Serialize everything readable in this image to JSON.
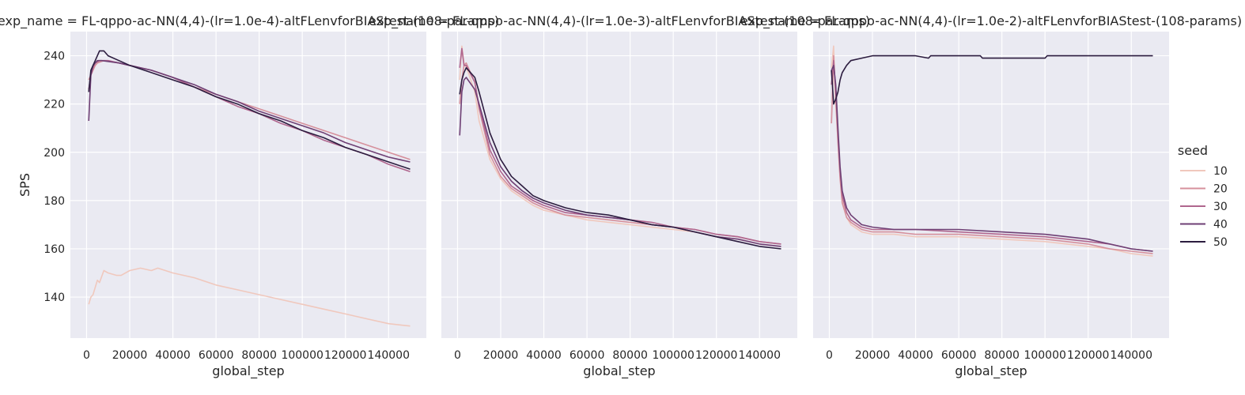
{
  "chart_data": {
    "type": "line",
    "shared": {
      "xlabel": "global_step",
      "ylabel": "SPS",
      "xlim": [
        -7500,
        157500
      ],
      "ylim": [
        123,
        250
      ],
      "x_ticks": [
        0,
        20000,
        40000,
        60000,
        80000,
        100000,
        120000,
        140000
      ],
      "y_ticks": [
        140,
        160,
        180,
        200,
        220,
        240
      ],
      "background": "#eaeaf2",
      "grid": true
    },
    "legend": {
      "title": "seed",
      "placement": "right",
      "entries": [
        {
          "label": "10",
          "color": "#f0c8bd"
        },
        {
          "label": "20",
          "color": "#d6909c"
        },
        {
          "label": "30",
          "color": "#b0668e"
        },
        {
          "label": "40",
          "color": "#6e3f74"
        },
        {
          "label": "50",
          "color": "#2c1c3f"
        }
      ]
    },
    "panels": [
      {
        "title": "exp_name = FL-qppo-ac-NN(4,4)-(lr=1.0e-4)-altFLenvforBIAStest-(108-params)",
        "series": [
          {
            "name": "10",
            "color": "#f0c8bd",
            "x": [
              1000,
              2000,
              3000,
              5000,
              6000,
              8000,
              10000,
              14000,
              16000,
              20000,
              25000,
              30000,
              33000,
              40000,
              50000,
              60000,
              70000,
              80000,
              90000,
              100000,
              110000,
              120000,
              130000,
              140000,
              150000
            ],
            "y": [
              137,
              140,
              141,
              147,
              146,
              151,
              150,
              149,
              149,
              151,
              152,
              151,
              152,
              150,
              148,
              145,
              143,
              141,
              139,
              137,
              135,
              133,
              131,
              129,
              128
            ]
          },
          {
            "name": "20",
            "color": "#d6909c",
            "x": [
              1000,
              2000,
              3000,
              4000,
              5000,
              8000,
              15000,
              20000,
              30000,
              40000,
              50000,
              60000,
              70000,
              80000,
              90000,
              100000,
              110000,
              120000,
              130000,
              140000,
              150000
            ],
            "y": [
              230,
              232,
              234,
              236,
              237,
              238,
              237,
              236,
              234,
              231,
              227,
              224,
              221,
              218,
              215,
              212,
              209,
              206,
              203,
              200,
              197
            ]
          },
          {
            "name": "30",
            "color": "#b0668e",
            "x": [
              1000,
              2000,
              3000,
              4000,
              6000,
              10000,
              15000,
              20000,
              30000,
              40000,
              50000,
              60000,
              70000,
              80000,
              90000,
              100000,
              110000,
              120000,
              130000,
              140000,
              150000
            ],
            "y": [
              226,
              232,
              235,
              237,
              238,
              238,
              237,
              236,
              234,
              231,
              227,
              223,
              219,
              216,
              212,
              209,
              205,
              202,
              199,
              195,
              192
            ]
          },
          {
            "name": "40",
            "color": "#6e3f74",
            "x": [
              1000,
              2000,
              3000,
              4000,
              5000,
              7000,
              15000,
              20000,
              30000,
              40000,
              50000,
              60000,
              70000,
              80000,
              90000,
              100000,
              110000,
              120000,
              130000,
              140000,
              150000
            ],
            "y": [
              213,
              232,
              236,
              237,
              238,
              238,
              237,
              236,
              234,
              231,
              228,
              224,
              221,
              217,
              214,
              211,
              208,
              204,
              201,
              198,
              196
            ]
          },
          {
            "name": "50",
            "color": "#2c1c3f",
            "x": [
              1000,
              2000,
              3000,
              4000,
              5000,
              6000,
              8000,
              10000,
              15000,
              20000,
              30000,
              40000,
              50000,
              60000,
              70000,
              80000,
              90000,
              100000,
              110000,
              120000,
              130000,
              140000,
              150000
            ],
            "y": [
              225,
              234,
              236,
              238,
              240,
              242,
              242,
              240,
              238,
              236,
              233,
              230,
              227,
              223,
              220,
              216,
              213,
              209,
              206,
              202,
              199,
              196,
              193
            ]
          }
        ]
      },
      {
        "title": "exp_name = FL-qppo-ac-NN(4,4)-(lr=1.0e-3)-altFLenvforBIAStest-(108-params)",
        "series": [
          {
            "name": "10",
            "color": "#f0c8bd",
            "x": [
              1000,
              2000,
              3000,
              5000,
              8000,
              10000,
              15000,
              20000,
              25000,
              30000,
              35000,
              40000,
              50000,
              60000,
              70000,
              80000,
              90000,
              100000,
              110000,
              120000,
              130000,
              140000,
              150000
            ],
            "y": [
              230,
              244,
              237,
              233,
              225,
              213,
              197,
              189,
              184,
              181,
              178,
              176,
              174,
              172,
              171,
              170,
              169,
              168,
              167,
              165,
              164,
              162,
              161
            ]
          },
          {
            "name": "20",
            "color": "#d6909c",
            "x": [
              1000,
              2000,
              3000,
              4000,
              8000,
              10000,
              15000,
              20000,
              25000,
              30000,
              35000,
              40000,
              50000,
              60000,
              70000,
              80000,
              90000,
              100000,
              110000,
              120000,
              130000,
              140000,
              150000
            ],
            "y": [
              220,
              230,
              236,
              237,
              229,
              218,
              199,
              190,
              185,
              182,
              179,
              177,
              174,
              173,
              172,
              171,
              170,
              169,
              168,
              166,
              165,
              163,
              162
            ]
          },
          {
            "name": "30",
            "color": "#b0668e",
            "x": [
              1000,
              2000,
              3000,
              4000,
              8000,
              10000,
              15000,
              20000,
              25000,
              30000,
              35000,
              40000,
              50000,
              60000,
              70000,
              80000,
              90000,
              100000,
              110000,
              120000,
              130000,
              140000,
              150000
            ],
            "y": [
              235,
              243,
              236,
              236,
              229,
              219,
              201,
              192,
              186,
              183,
              180,
              178,
              175,
              174,
              173,
              172,
              171,
              169,
              168,
              166,
              165,
              163,
              162
            ]
          },
          {
            "name": "40",
            "color": "#6e3f74",
            "x": [
              1000,
              2000,
              3000,
              4000,
              8000,
              10000,
              15000,
              20000,
              25000,
              30000,
              35000,
              40000,
              50000,
              60000,
              70000,
              80000,
              90000,
              100000,
              110000,
              120000,
              130000,
              140000,
              150000
            ],
            "y": [
              207,
              225,
              230,
              231,
              226,
              220,
              204,
              194,
              188,
              184,
              181,
              179,
              176,
              174,
              173,
              172,
              170,
              169,
              167,
              165,
              164,
              162,
              161
            ]
          },
          {
            "name": "50",
            "color": "#2c1c3f",
            "x": [
              1000,
              2000,
              3000,
              4000,
              8000,
              10000,
              15000,
              20000,
              25000,
              30000,
              35000,
              40000,
              50000,
              60000,
              70000,
              80000,
              90000,
              100000,
              110000,
              120000,
              130000,
              140000,
              150000
            ],
            "y": [
              224,
              230,
              233,
              235,
              231,
              225,
              208,
              197,
              190,
              186,
              182,
              180,
              177,
              175,
              174,
              172,
              170,
              169,
              167,
              165,
              163,
              161,
              160
            ]
          }
        ]
      },
      {
        "title": "exp_name = FL-qppo-ac-NN(4,4)-(lr=1.0e-2)-altFLenvforBIAStest-(108-params)",
        "series": [
          {
            "name": "10",
            "color": "#f0c8bd",
            "x": [
              1000,
              2000,
              3000,
              4000,
              5000,
              6000,
              8000,
              10000,
              15000,
              20000,
              30000,
              40000,
              60000,
              80000,
              100000,
              120000,
              130000,
              140000,
              150000
            ],
            "y": [
              235,
              244,
              220,
              205,
              190,
              180,
              173,
              170,
              167,
              166,
              166,
              165,
              165,
              164,
              163,
              161,
              160,
              158,
              157
            ]
          },
          {
            "name": "20",
            "color": "#d6909c",
            "x": [
              1000,
              2000,
              3000,
              4000,
              5000,
              6000,
              8000,
              10000,
              15000,
              20000,
              30000,
              40000,
              60000,
              80000,
              100000,
              120000,
              130000,
              140000,
              150000
            ],
            "y": [
              212,
              240,
              222,
              204,
              189,
              179,
              173,
              171,
              168,
              167,
              167,
              166,
              166,
              165,
              164,
              162,
              160,
              159,
              158
            ]
          },
          {
            "name": "30",
            "color": "#b0668e",
            "x": [
              1000,
              2000,
              3000,
              4000,
              5000,
              6000,
              8000,
              10000,
              15000,
              20000,
              30000,
              40000,
              60000,
              80000,
              100000,
              120000,
              130000,
              140000,
              150000
            ],
            "y": [
              228,
              238,
              226,
              207,
              192,
              182,
              175,
              172,
              169,
              168,
              168,
              168,
              167,
              166,
              165,
              163,
              162,
              160,
              159
            ]
          },
          {
            "name": "40",
            "color": "#6e3f74",
            "x": [
              1000,
              2000,
              3000,
              4000,
              5000,
              6000,
              8000,
              10000,
              15000,
              20000,
              30000,
              40000,
              60000,
              80000,
              100000,
              120000,
              130000,
              140000,
              150000
            ],
            "y": [
              234,
              236,
              228,
              210,
              194,
              184,
              177,
              174,
              170,
              169,
              168,
              168,
              168,
              167,
              166,
              164,
              162,
              160,
              159
            ]
          },
          {
            "name": "50",
            "color": "#2c1c3f",
            "x": [
              1000,
              2000,
              3000,
              4000,
              5000,
              6000,
              8000,
              10000,
              15000,
              20000,
              30000,
              40000,
              46000,
              47000,
              60000,
              70000,
              71000,
              100000,
              101000,
              115000,
              116000,
              150000
            ],
            "y": [
              234,
              220,
              222,
              225,
              230,
              233,
              236,
              238,
              239,
              240,
              240,
              240,
              239,
              240,
              240,
              240,
              239,
              239,
              240,
              240,
              240,
              240
            ]
          }
        ]
      }
    ]
  }
}
